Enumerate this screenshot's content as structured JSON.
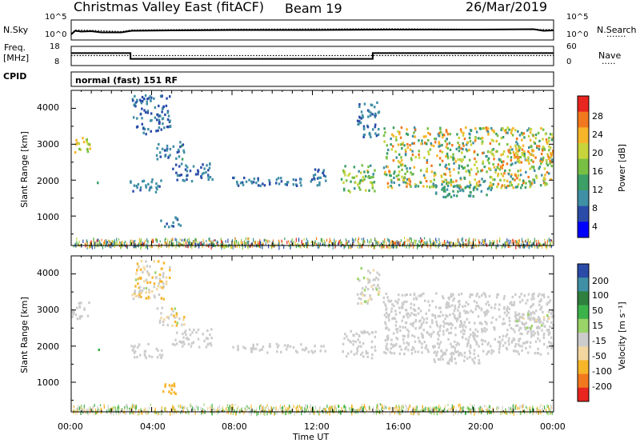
{
  "header": {
    "station": "Christmas Valley East (fitACF)",
    "beam": "Beam 19",
    "date": "26/Mar/2019"
  },
  "labels": {
    "nsky": "N.Sky",
    "nsearch": "N.Search",
    "nsearch_dots": "·······",
    "freq_line1": "Freq.",
    "freq_line2": "[MHz]",
    "nave": "Nave",
    "nave_dots": "·····",
    "cpid": "CPID",
    "mode": "normal (fast) 151 RF",
    "slant_range_power": "Slant Range [km]",
    "slant_range_vel": "Slant Range [km]",
    "power_axis": "Power [dB]",
    "velocity_axis": "Velocity [m s⁻¹]",
    "time_axis": "Time UT"
  },
  "colors": {
    "power_scale": [
      "#0000ff",
      "#2a4ca8",
      "#3f8fa5",
      "#3c9f66",
      "#77c043",
      "#c8d43b",
      "#f7b52a",
      "#f2781f",
      "#e8251e"
    ],
    "velocity_scale": [
      "#e8251e",
      "#f2781f",
      "#f7b52a",
      "#f2d7a0",
      "#cccccc",
      "#9ad468",
      "#3cb34a",
      "#2f7f3e",
      "#3f8fa5",
      "#2a4ca8"
    ]
  },
  "chart_data": [
    {
      "name": "nsky_nsearch",
      "type": "line",
      "x_range_hours": [
        0,
        24
      ],
      "y_left_ticks": [
        "10^5",
        "10^0"
      ],
      "y_right_ticks": [
        "10^5",
        "10^0"
      ],
      "series": [
        {
          "name": "N.Sky",
          "style": "solid",
          "points": [
            [
              0.0,
              1.4
            ],
            [
              0.2,
              2.3
            ],
            [
              0.5,
              2.1
            ],
            [
              1.0,
              2.2
            ],
            [
              1.5,
              1.9
            ],
            [
              2.5,
              1.9
            ],
            [
              3.0,
              2.3
            ],
            [
              5.0,
              2.4
            ],
            [
              8.0,
              2.5
            ],
            [
              12.0,
              2.5
            ],
            [
              16.0,
              2.6
            ],
            [
              20.0,
              2.6
            ],
            [
              23.0,
              2.7
            ],
            [
              23.5,
              2.3
            ],
            [
              24.0,
              2.4
            ]
          ]
        },
        {
          "name": "N.Search",
          "style": "dotted",
          "points": [
            [
              0.0,
              1.6
            ],
            [
              0.2,
              2.5
            ],
            [
              1.0,
              2.4
            ],
            [
              2.5,
              2.1
            ],
            [
              3.0,
              2.5
            ],
            [
              8.0,
              2.7
            ],
            [
              16.0,
              2.8
            ],
            [
              24.0,
              2.6
            ]
          ]
        }
      ]
    },
    {
      "name": "freq_nave",
      "type": "line",
      "x_range_hours": [
        0,
        24
      ],
      "y_left_ticks": [
        18,
        8
      ],
      "y_right_ticks": [
        60,
        0
      ],
      "series": [
        {
          "name": "Freq",
          "style": "solid",
          "points": [
            [
              0.0,
              14.5
            ],
            [
              2.95,
              14.5
            ],
            [
              2.95,
              11.5
            ],
            [
              15.0,
              11.5
            ],
            [
              15.0,
              14.5
            ],
            [
              24.0,
              14.5
            ]
          ]
        },
        {
          "name": "Nave",
          "style": "dotted",
          "points": [
            [
              0.0,
              13.2
            ],
            [
              24.0,
              13.2
            ]
          ]
        }
      ]
    },
    {
      "name": "power",
      "type": "heatmap",
      "x_range_hours": [
        0,
        24
      ],
      "ylim": [
        180,
        4500
      ],
      "y_ticks": [
        1000,
        2000,
        3000,
        4000
      ],
      "colorbar_ticks": [
        4,
        8,
        12,
        16,
        20,
        24,
        28
      ],
      "colorbar_range": [
        0,
        32
      ],
      "echo_regions": [
        {
          "t": [
            0.0,
            0.9
          ],
          "r": [
            2750,
            3250
          ],
          "v": [
            14,
            26
          ]
        },
        {
          "t": [
            1.25,
            1.35
          ],
          "r": [
            1700,
            2000
          ],
          "v": [
            8,
            14
          ]
        },
        {
          "t": [
            2.9,
            4.5
          ],
          "r": [
            1700,
            2100
          ],
          "v": [
            6,
            10
          ]
        },
        {
          "t": [
            3.0,
            4.9
          ],
          "r": [
            3300,
            4400
          ],
          "v": [
            5,
            9
          ]
        },
        {
          "t": [
            4.2,
            5.6
          ],
          "r": [
            2600,
            3100
          ],
          "v": [
            6,
            11
          ]
        },
        {
          "t": [
            4.4,
            5.4
          ],
          "r": [
            700,
            1000
          ],
          "v": [
            6,
            10
          ]
        },
        {
          "t": [
            5.0,
            7.0
          ],
          "r": [
            2000,
            2500
          ],
          "v": [
            5,
            9
          ]
        },
        {
          "t": [
            8.0,
            12.6
          ],
          "r": [
            1850,
            2100
          ],
          "v": [
            6,
            10
          ]
        },
        {
          "t": [
            12.0,
            12.8
          ],
          "r": [
            2000,
            2400
          ],
          "v": [
            6,
            10
          ]
        },
        {
          "t": [
            13.4,
            15.1
          ],
          "r": [
            1700,
            2450
          ],
          "v": [
            10,
            22
          ]
        },
        {
          "t": [
            14.2,
            15.3
          ],
          "r": [
            3200,
            4200
          ],
          "v": [
            6,
            10
          ]
        },
        {
          "t": [
            15.5,
            23.9
          ],
          "r": [
            1800,
            3500
          ],
          "v": [
            8,
            28
          ]
        },
        {
          "t": [
            18.0,
            21.0
          ],
          "r": [
            1550,
            1900
          ],
          "v": [
            8,
            14
          ]
        },
        {
          "t": [
            22.0,
            24.0
          ],
          "r": [
            2500,
            3000
          ],
          "v": [
            14,
            28
          ]
        }
      ],
      "ground_band": {
        "r": [
          180,
          420
        ],
        "v": [
          4,
          30
        ]
      }
    },
    {
      "name": "velocity",
      "type": "heatmap",
      "x_range_hours": [
        0,
        24
      ],
      "ylim": [
        180,
        4500
      ],
      "y_ticks": [
        1000,
        2000,
        3000,
        4000
      ],
      "colorbar_ticks": [
        200,
        100,
        50,
        15,
        -15,
        -50,
        -100,
        -200
      ],
      "x_tick_labels": [
        "00:00",
        "04:00",
        "08:00",
        "12:00",
        "16:00",
        "20:00",
        "00:00"
      ],
      "echo_regions": [
        {
          "t": [
            0.0,
            0.9
          ],
          "r": [
            2750,
            3250
          ],
          "v": [
            -15,
            15
          ]
        },
        {
          "t": [
            1.25,
            1.35
          ],
          "r": [
            1700,
            2000
          ],
          "v": [
            15,
            80
          ]
        },
        {
          "t": [
            2.9,
            4.5
          ],
          "r": [
            1700,
            2100
          ],
          "v": [
            -15,
            15
          ]
        },
        {
          "t": [
            3.0,
            4.9
          ],
          "r": [
            3300,
            4400
          ],
          "v": [
            -60,
            20
          ]
        },
        {
          "t": [
            4.2,
            5.6
          ],
          "r": [
            2600,
            3100
          ],
          "v": [
            -60,
            20
          ]
        },
        {
          "t": [
            4.4,
            5.4
          ],
          "r": [
            700,
            1000
          ],
          "v": [
            -80,
            -30
          ]
        },
        {
          "t": [
            5.0,
            7.0
          ],
          "r": [
            2000,
            2500
          ],
          "v": [
            -15,
            15
          ]
        },
        {
          "t": [
            8.0,
            12.6
          ],
          "r": [
            1850,
            2100
          ],
          "v": [
            -15,
            15
          ]
        },
        {
          "t": [
            13.4,
            15.1
          ],
          "r": [
            1700,
            2450
          ],
          "v": [
            -15,
            15
          ]
        },
        {
          "t": [
            14.2,
            15.3
          ],
          "r": [
            3200,
            4200
          ],
          "v": [
            -30,
            30
          ]
        },
        {
          "t": [
            15.5,
            23.9
          ],
          "r": [
            1800,
            3500
          ],
          "v": [
            -15,
            15
          ]
        },
        {
          "t": [
            18.0,
            21.0
          ],
          "r": [
            1550,
            1900
          ],
          "v": [
            -15,
            15
          ]
        },
        {
          "t": [
            22.0,
            24.0
          ],
          "r": [
            2500,
            3000
          ],
          "v": [
            -20,
            20
          ]
        }
      ],
      "ground_band": {
        "r": [
          180,
          420
        ],
        "v": [
          -60,
          60
        ]
      }
    }
  ]
}
